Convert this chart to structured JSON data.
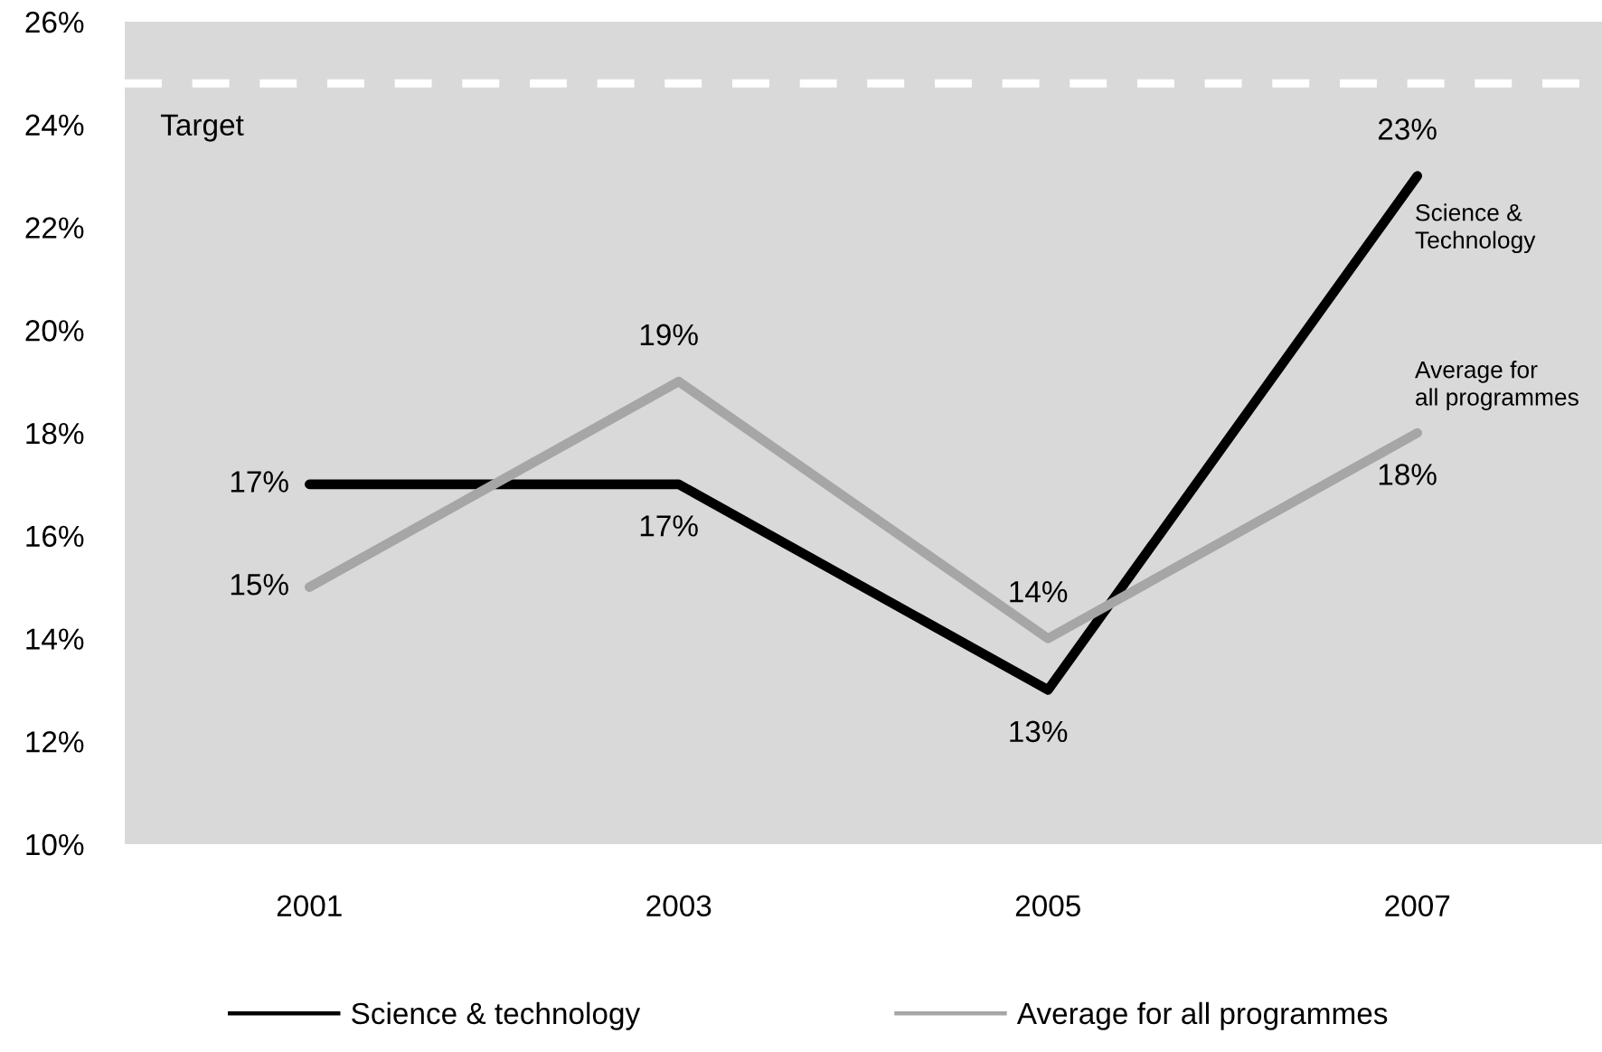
{
  "chart_data": {
    "type": "line",
    "categories": [
      "2001",
      "2003",
      "2005",
      "2007"
    ],
    "series": [
      {
        "name": "Science & technology",
        "color": "#000000",
        "values": [
          17,
          17,
          13,
          23
        ],
        "value_labels": [
          "17%",
          "17%",
          "13%",
          "23%"
        ]
      },
      {
        "name": "Average for all programmes",
        "color": "#a6a6a6",
        "values": [
          15,
          19,
          14,
          18
        ],
        "value_labels": [
          "15%",
          "19%",
          "14%",
          "18%"
        ]
      }
    ],
    "ylim": [
      10,
      26
    ],
    "yticks": [
      {
        "value": 10,
        "label": "10%"
      },
      {
        "value": 12,
        "label": "12%"
      },
      {
        "value": 14,
        "label": "14%"
      },
      {
        "value": 16,
        "label": "16%"
      },
      {
        "value": 18,
        "label": "18%"
      },
      {
        "value": 20,
        "label": "20%"
      },
      {
        "value": 22,
        "label": "22%"
      },
      {
        "value": 24,
        "label": "24%"
      },
      {
        "value": 26,
        "label": "26%"
      }
    ],
    "ref_lines": [
      {
        "axis": "y",
        "value": 24.8,
        "label": "Target",
        "color": "#ffffff",
        "line_style": "dashed"
      }
    ],
    "annotations": [
      {
        "text": "Science &\nTechnology",
        "x": "2007",
        "y": 23
      },
      {
        "text": "Average for\nall programmes",
        "x": "2007",
        "y": 18
      }
    ],
    "grid": false,
    "legend": "bottom",
    "marker": "none",
    "line_style": "solid"
  }
}
